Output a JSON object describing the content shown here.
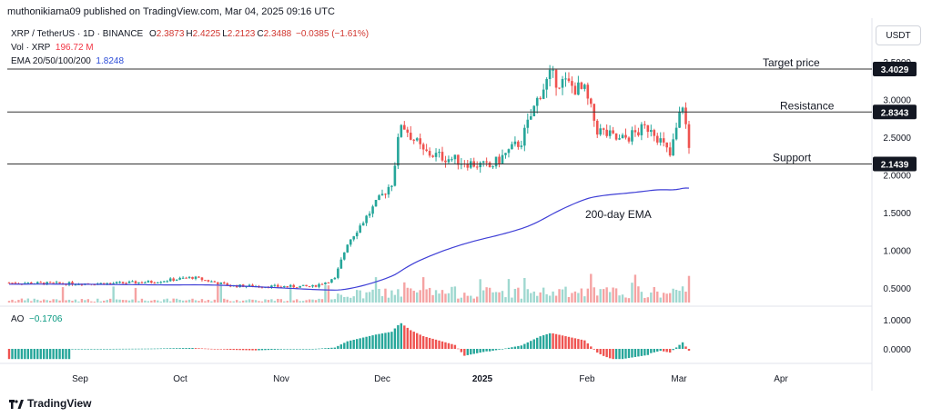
{
  "header": {
    "publisher": "muthonikiama09 published on TradingView.com, Mar 04, 2025 09:16 UTC"
  },
  "legend": {
    "symbol": "XRP / TetherUS · 1D · BINANCE",
    "ohlc": [
      {
        "k": "O",
        "v": "2.3873"
      },
      {
        "k": "H",
        "v": "2.4225"
      },
      {
        "k": "L",
        "v": "2.2123"
      },
      {
        "k": "C",
        "v": "2.3488"
      }
    ],
    "change": "−0.0385 (−1.61%)",
    "vol_label": "Vol · XRP",
    "vol_value": "196.72 M",
    "ema_label": "EMA 20/50/100/200",
    "ema_value": "1.8248",
    "ao_label": "AO",
    "ao_value": "−0.1706"
  },
  "currency": "USDT",
  "brand": "TradingView",
  "colors": {
    "up": "#26a69a",
    "down": "#ef5350",
    "ema": "#3f3fd6",
    "line": "#333333",
    "badge": "#131722"
  },
  "chart_data": {
    "type": "candlestick",
    "x_axis_labels": [
      "Sep",
      "Oct",
      "Nov",
      "Dec",
      "2025",
      "Feb",
      "Mar",
      "Apr"
    ],
    "price_axis": {
      "ticks": [
        "3.5000",
        "3.0000",
        "2.5000",
        "2.0000",
        "1.5000",
        "1.0000",
        "0.5000"
      ],
      "ylim": [
        0.4,
        3.6
      ]
    },
    "ao_axis": {
      "ticks": [
        "1.0000",
        "0.0000"
      ]
    },
    "levels": [
      {
        "name": "Target price",
        "price": 3.4029,
        "badge": "3.4029"
      },
      {
        "name": "Resistance",
        "price": 2.8343,
        "badge": "2.8343"
      },
      {
        "name": "Support",
        "price": 2.1439,
        "badge": "2.1439"
      }
    ],
    "annotations": [
      {
        "text": "200-day EMA"
      }
    ],
    "ema200_last": 1.8248,
    "price_path": [
      [
        "2024-08-01",
        0.57
      ],
      [
        "2024-08-15",
        0.56
      ],
      [
        "2024-09-01",
        0.56
      ],
      [
        "2024-09-15",
        0.58
      ],
      [
        "2024-09-28",
        0.64
      ],
      [
        "2024-10-10",
        0.53
      ],
      [
        "2024-10-25",
        0.52
      ],
      [
        "2024-11-05",
        0.52
      ],
      [
        "2024-11-12",
        0.62
      ],
      [
        "2024-11-16",
        1.1
      ],
      [
        "2024-11-23",
        1.5
      ],
      [
        "2024-11-30",
        1.9
      ],
      [
        "2024-12-03",
        2.7
      ],
      [
        "2024-12-10",
        2.3
      ],
      [
        "2024-12-20",
        2.2
      ],
      [
        "2024-12-31",
        2.1
      ],
      [
        "2025-01-10",
        2.45
      ],
      [
        "2025-01-16",
        3.1
      ],
      [
        "2025-01-19",
        3.3
      ],
      [
        "2025-01-30",
        3.1
      ],
      [
        "2025-02-03",
        2.6
      ],
      [
        "2025-02-10",
        2.45
      ],
      [
        "2025-02-20",
        2.65
      ],
      [
        "2025-02-26",
        2.25
      ],
      [
        "2025-03-02",
        2.95
      ],
      [
        "2025-03-04",
        2.35
      ]
    ]
  }
}
